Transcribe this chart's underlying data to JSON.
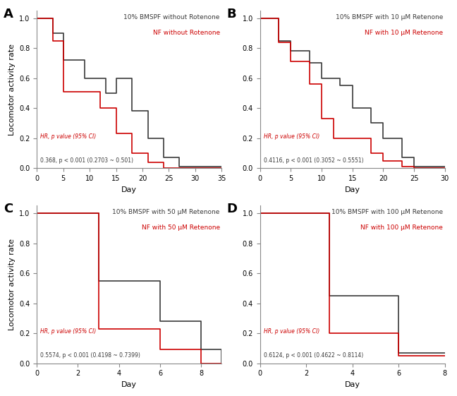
{
  "panels": [
    {
      "label": "A",
      "title_black": "10% BMSPF without Rotenone",
      "title_red": "NF without Rotenone",
      "hr_text": "HR, p value (95% CI)\n0.368, p < 0.001 (0.2703 ~ 0.501)",
      "xlim": [
        0,
        35
      ],
      "xticks": [
        0,
        5,
        10,
        15,
        20,
        25,
        30,
        35
      ],
      "ylim": [
        0,
        1.05
      ],
      "yticks": [
        0.0,
        0.2,
        0.4,
        0.6,
        0.8,
        1.0
      ],
      "black_x": [
        0,
        3,
        3,
        5,
        5,
        9,
        9,
        13,
        13,
        15,
        15,
        18,
        18,
        21,
        21,
        24,
        24,
        27,
        27,
        35
      ],
      "black_y": [
        1.0,
        1.0,
        0.9,
        0.9,
        0.72,
        0.72,
        0.6,
        0.6,
        0.5,
        0.5,
        0.6,
        0.6,
        0.38,
        0.38,
        0.2,
        0.2,
        0.07,
        0.07,
        0.01,
        0.01
      ],
      "red_x": [
        0,
        3,
        3,
        5,
        5,
        9,
        9,
        12,
        12,
        15,
        15,
        18,
        18,
        21,
        21,
        24,
        24,
        27,
        27,
        35
      ],
      "red_y": [
        1.0,
        1.0,
        0.85,
        0.85,
        0.51,
        0.51,
        0.51,
        0.51,
        0.4,
        0.4,
        0.23,
        0.23,
        0.1,
        0.1,
        0.04,
        0.04,
        0.0,
        0.0,
        0.0,
        0.0
      ]
    },
    {
      "label": "B",
      "title_black": "10% BMSPF with 10 μM Retenone",
      "title_red": "NF with 10 μM Retenone",
      "hr_text": "HR, p value (95% CI)\n0.4116, p < 0.001 (0.3052 ~ 0.5551)",
      "xlim": [
        0,
        30
      ],
      "xticks": [
        0,
        5,
        10,
        15,
        20,
        25,
        30
      ],
      "ylim": [
        0,
        1.05
      ],
      "yticks": [
        0.0,
        0.2,
        0.4,
        0.6,
        0.8,
        1.0
      ],
      "black_x": [
        0,
        3,
        3,
        5,
        5,
        8,
        8,
        10,
        10,
        13,
        13,
        15,
        15,
        18,
        18,
        20,
        20,
        23,
        23,
        25,
        25,
        30
      ],
      "black_y": [
        1.0,
        1.0,
        0.85,
        0.85,
        0.78,
        0.78,
        0.7,
        0.7,
        0.6,
        0.6,
        0.55,
        0.55,
        0.4,
        0.4,
        0.3,
        0.3,
        0.2,
        0.2,
        0.07,
        0.07,
        0.01,
        0.01
      ],
      "red_x": [
        0,
        3,
        3,
        5,
        5,
        8,
        8,
        10,
        10,
        12,
        12,
        15,
        15,
        18,
        18,
        20,
        20,
        23,
        23,
        25,
        25,
        30
      ],
      "red_y": [
        1.0,
        1.0,
        0.84,
        0.84,
        0.71,
        0.71,
        0.56,
        0.56,
        0.33,
        0.33,
        0.2,
        0.2,
        0.2,
        0.2,
        0.1,
        0.1,
        0.05,
        0.05,
        0.01,
        0.01,
        0.0,
        0.0
      ]
    },
    {
      "label": "C",
      "title_black": "10% BMSPF with 50 μM Retenone",
      "title_red": "NF with 50 μM Retenone",
      "hr_text": "HR, p value (95% CI)\n0.5574, p < 0.001 (0.4198 ~ 0.7399)",
      "xlim": [
        0,
        9
      ],
      "xticks": [
        0,
        2,
        4,
        6,
        8
      ],
      "ylim": [
        0,
        1.05
      ],
      "yticks": [
        0.0,
        0.2,
        0.4,
        0.6,
        0.8,
        1.0
      ],
      "black_x": [
        0,
        3,
        3,
        6,
        6,
        8,
        8,
        9
      ],
      "black_y": [
        1.0,
        1.0,
        0.55,
        0.55,
        0.28,
        0.28,
        0.09,
        0.0
      ],
      "red_x": [
        0,
        3,
        3,
        6,
        6,
        8,
        8,
        9
      ],
      "red_y": [
        1.0,
        1.0,
        0.23,
        0.23,
        0.09,
        0.09,
        0.0,
        0.0
      ]
    },
    {
      "label": "D",
      "title_black": "10% BMSPF with 100 μM Retenone",
      "title_red": "NF with 100 μM Retenone",
      "hr_text": "HR, p value (95% CI)\n0.6124, p < 0.001 (0.4622 ~ 0.8114)",
      "xlim": [
        0,
        8
      ],
      "xticks": [
        0,
        2,
        4,
        6,
        8
      ],
      "ylim": [
        0,
        1.05
      ],
      "yticks": [
        0.0,
        0.2,
        0.4,
        0.6,
        0.8,
        1.0
      ],
      "black_x": [
        0,
        3,
        3,
        6,
        6,
        8
      ],
      "black_y": [
        1.0,
        1.0,
        0.45,
        0.45,
        0.07,
        0.07
      ],
      "red_x": [
        0,
        3,
        3,
        6,
        6,
        8
      ],
      "red_y": [
        1.0,
        1.0,
        0.2,
        0.2,
        0.05,
        0.05
      ]
    }
  ],
  "ylabel": "Locomotor activity rate",
  "xlabel": "Day",
  "black_color": "#3a3a3a",
  "red_color": "#cc0000",
  "background_color": "#ffffff",
  "hr_label_color_red": "#cc0000",
  "hr_label_color_black": "#3a3a3a"
}
